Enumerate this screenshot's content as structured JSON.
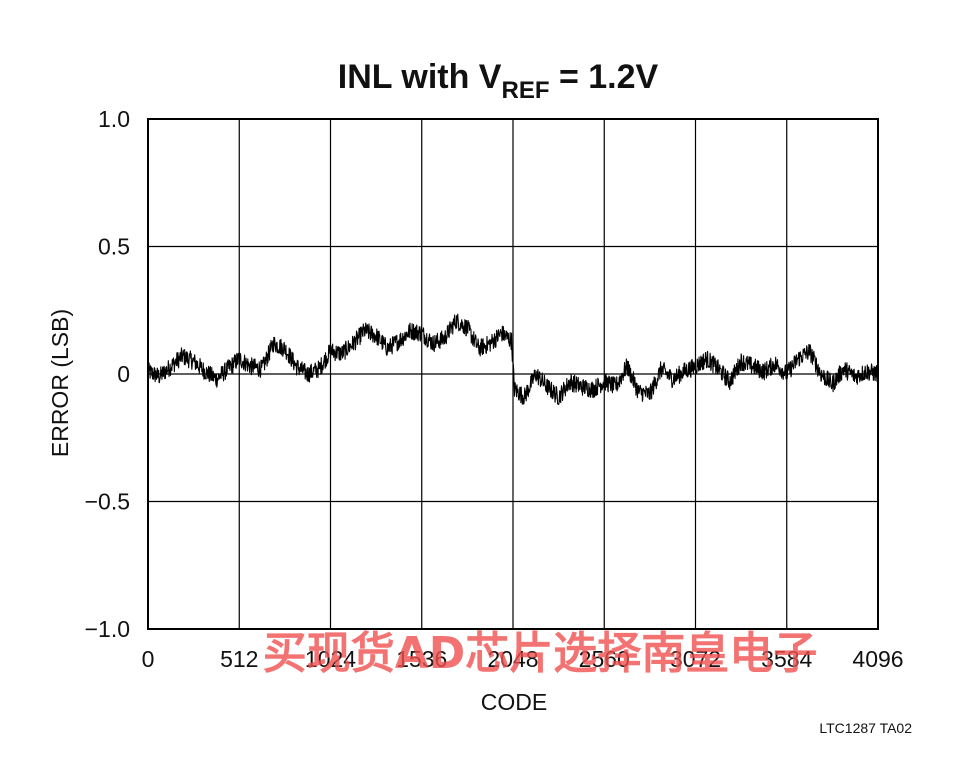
{
  "chart_data": {
    "type": "line",
    "title": {
      "main": "INL with V",
      "subscript": "REF",
      "suffix": " = 1.2V"
    },
    "xlabel": "CODE",
    "ylabel": "ERROR (LSB)",
    "xlim": [
      0,
      4096
    ],
    "ylim": [
      -1.0,
      1.0
    ],
    "x_ticks": [
      0,
      512,
      1024,
      1536,
      2048,
      2560,
      3072,
      3584,
      4096
    ],
    "x_tick_labels": [
      "0",
      "512",
      "1024",
      "1536",
      "2048",
      "2560",
      "3072",
      "3584",
      "4096"
    ],
    "y_ticks": [
      1.0,
      0.5,
      0,
      -0.5,
      -1.0
    ],
    "y_tick_labels": [
      "1.0",
      "0.5",
      "0",
      "−0.5",
      "−1.0"
    ],
    "grid": true,
    "series": [
      {
        "color": "#000000",
        "x": [
          0,
          64,
          128,
          192,
          256,
          320,
          384,
          448,
          512,
          576,
          640,
          704,
          768,
          832,
          896,
          960,
          1024,
          1088,
          1152,
          1216,
          1280,
          1344,
          1408,
          1472,
          1536,
          1600,
          1664,
          1728,
          1792,
          1856,
          1920,
          1984,
          2040,
          2056,
          2112,
          2176,
          2240,
          2304,
          2368,
          2432,
          2496,
          2560,
          2624,
          2688,
          2752,
          2816,
          2880,
          2944,
          3008,
          3072,
          3136,
          3200,
          3264,
          3328,
          3392,
          3456,
          3520,
          3584,
          3648,
          3712,
          3776,
          3840,
          3904,
          3968,
          4032,
          4096
        ],
        "y": [
          0.01,
          -0.01,
          0.03,
          0.07,
          0.05,
          0.01,
          -0.02,
          0.02,
          0.06,
          0.03,
          0.02,
          0.12,
          0.1,
          0.03,
          0.0,
          0.02,
          0.09,
          0.08,
          0.12,
          0.17,
          0.15,
          0.1,
          0.13,
          0.17,
          0.16,
          0.12,
          0.14,
          0.21,
          0.18,
          0.1,
          0.12,
          0.16,
          0.13,
          -0.06,
          -0.09,
          0.0,
          -0.05,
          -0.09,
          -0.03,
          -0.05,
          -0.06,
          -0.03,
          -0.05,
          0.03,
          -0.07,
          -0.08,
          0.02,
          -0.02,
          0.01,
          0.03,
          0.06,
          0.02,
          -0.03,
          0.05,
          0.03,
          0.01,
          0.04,
          0.0,
          0.06,
          0.09,
          0.0,
          -0.04,
          0.02,
          -0.01,
          0.01,
          0.0
        ]
      }
    ]
  },
  "footnote": "LTC1287 TA02",
  "watermark": "买现货AD芯片选择南皇电子"
}
